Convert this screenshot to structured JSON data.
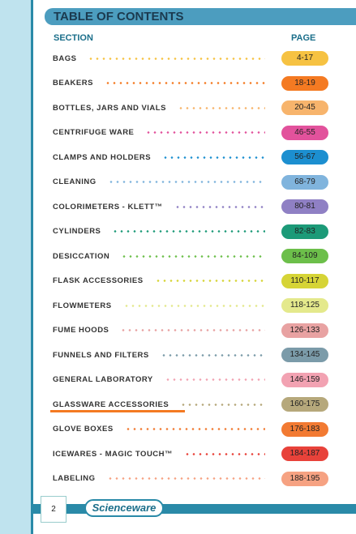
{
  "header": {
    "title": "TABLE OF CONTENTS"
  },
  "columns": {
    "section": "SECTION",
    "page": "PAGE"
  },
  "rows": [
    {
      "section": "BAGS",
      "page": "4-17",
      "color": "#f6c242"
    },
    {
      "section": "BEAKERS",
      "page": "18-19",
      "color": "#f47a22"
    },
    {
      "section": "BOTTLES, JARS AND VIALS",
      "page": "20-45",
      "color": "#f7b46c"
    },
    {
      "section": "CENTRIFUGE WARE",
      "page": "46-55",
      "color": "#e2529c"
    },
    {
      "section": "CLAMPS AND HOLDERS",
      "page": "56-67",
      "color": "#1c8fd0"
    },
    {
      "section": "CLEANING",
      "page": "68-79",
      "color": "#80b4dd"
    },
    {
      "section": "COLORIMETERS - KLETT™",
      "page": "80-81",
      "color": "#8f80c4"
    },
    {
      "section": "CYLINDERS",
      "page": "82-83",
      "color": "#1c9a78"
    },
    {
      "section": "DESICCATION",
      "page": "84-109",
      "color": "#6cbf4a"
    },
    {
      "section": "FLASK ACCESSORIES",
      "page": "110-117",
      "color": "#d6d436"
    },
    {
      "section": "FLOWMETERS",
      "page": "118-125",
      "color": "#e4e98c"
    },
    {
      "section": "FUME HOODS",
      "page": "126-133",
      "color": "#e8a2a2"
    },
    {
      "section": "FUNNELS AND FILTERS",
      "page": "134-145",
      "color": "#7b9ba9"
    },
    {
      "section": "GENERAL LABORATORY",
      "page": "146-159",
      "color": "#f2a2b2"
    },
    {
      "section": "GLASSWARE ACCESSORIES",
      "page": "160-175",
      "color": "#b6a87b"
    },
    {
      "section": "GLOVE BOXES",
      "page": "176-183",
      "color": "#f27a32"
    },
    {
      "section": "ICEWARES - MAGIC TOUCH™",
      "page": "184-187",
      "color": "#e8423a"
    },
    {
      "section": "LABELING",
      "page": "188-195",
      "color": "#f6a282"
    }
  ],
  "footer": {
    "page_number": "2",
    "logo": "Scienceware"
  }
}
